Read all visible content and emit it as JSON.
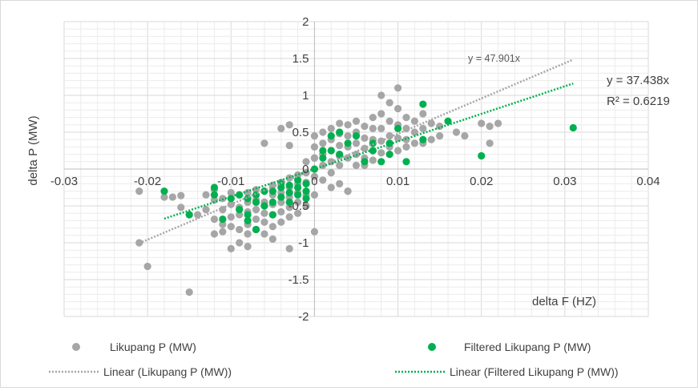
{
  "chart_data": {
    "type": "scatter",
    "title": "",
    "xlabel": "delta F (HZ)",
    "ylabel": "delta P (MW)",
    "xlim": [
      -0.03,
      0.04
    ],
    "ylim": [
      -2,
      2
    ],
    "x_ticks": [
      "-0.03",
      "-0.02",
      "-0.01",
      "0",
      "0.01",
      "0.02",
      "0.03",
      "0.04"
    ],
    "y_ticks": [
      "-2",
      "-1.5",
      "-1",
      "-0.5",
      "0",
      "0.5",
      "1",
      "1.5",
      "2"
    ],
    "grid": true,
    "legend_placement": "bottom",
    "series": [
      {
        "name": "Likupang P (MW)",
        "color": "#a6a6a6",
        "x": [
          -0.021,
          -0.021,
          -0.02,
          -0.018,
          -0.017,
          -0.016,
          -0.016,
          -0.015,
          -0.015,
          -0.014,
          -0.013,
          -0.013,
          -0.012,
          -0.012,
          -0.012,
          -0.012,
          -0.011,
          -0.011,
          -0.011,
          -0.011,
          -0.01,
          -0.01,
          -0.01,
          -0.01,
          -0.01,
          -0.009,
          -0.009,
          -0.009,
          -0.009,
          -0.009,
          -0.008,
          -0.008,
          -0.008,
          -0.008,
          -0.008,
          -0.008,
          -0.007,
          -0.007,
          -0.007,
          -0.007,
          -0.007,
          -0.006,
          -0.006,
          -0.006,
          -0.006,
          -0.006,
          -0.005,
          -0.005,
          -0.005,
          -0.005,
          -0.005,
          -0.005,
          -0.004,
          -0.004,
          -0.004,
          -0.004,
          -0.004,
          -0.003,
          -0.003,
          -0.003,
          -0.003,
          -0.003,
          -0.003,
          -0.002,
          -0.002,
          -0.002,
          -0.002,
          -0.002,
          -0.001,
          -0.001,
          -0.001,
          -0.001,
          -0.001,
          0.0,
          0.0,
          0.0,
          0.0,
          0.0,
          0.0,
          0.001,
          0.001,
          0.001,
          0.001,
          0.001,
          0.002,
          0.002,
          0.002,
          0.002,
          0.002,
          0.002,
          0.003,
          0.003,
          0.003,
          0.003,
          0.003,
          0.003,
          0.004,
          0.004,
          0.004,
          0.004,
          0.004,
          0.005,
          0.005,
          0.005,
          0.005,
          0.005,
          0.006,
          0.006,
          0.006,
          0.006,
          0.006,
          0.007,
          0.007,
          0.007,
          0.007,
          0.007,
          0.008,
          0.008,
          0.008,
          0.008,
          0.008,
          0.009,
          0.009,
          0.009,
          0.009,
          0.01,
          0.01,
          0.01,
          0.01,
          0.01,
          0.011,
          0.011,
          0.011,
          0.011,
          0.012,
          0.012,
          0.012,
          0.013,
          0.013,
          0.013,
          0.014,
          0.014,
          0.015,
          0.015,
          0.017,
          0.018,
          0.02,
          0.021,
          0.021,
          0.022,
          -0.004,
          -0.003,
          -0.006,
          0.0,
          0.004,
          -0.006,
          -0.003,
          0.005,
          0.003
        ],
        "y": [
          -0.3,
          -1.0,
          -1.32,
          -0.38,
          -0.38,
          -0.36,
          -0.52,
          -0.62,
          -1.67,
          -0.62,
          -0.35,
          -0.55,
          -0.28,
          -0.42,
          -0.68,
          -0.88,
          -0.4,
          -0.55,
          -0.75,
          -0.85,
          -0.32,
          -0.48,
          -0.65,
          -0.78,
          -1.08,
          -0.35,
          -0.52,
          -0.62,
          -0.82,
          -1.0,
          -0.32,
          -0.45,
          -0.58,
          -0.75,
          -0.88,
          -1.05,
          -0.28,
          -0.42,
          -0.55,
          -0.68,
          -0.82,
          -0.3,
          -0.45,
          -0.6,
          -0.72,
          -0.88,
          -0.22,
          -0.35,
          -0.48,
          -0.62,
          -0.78,
          -0.95,
          -0.18,
          -0.32,
          -0.45,
          -0.58,
          -0.72,
          -0.12,
          -0.25,
          -0.38,
          -0.52,
          -0.65,
          -1.08,
          -0.08,
          -0.2,
          -0.32,
          -0.45,
          -0.6,
          0.1,
          -0.05,
          -0.18,
          -0.35,
          -0.5,
          0.45,
          0.3,
          0.15,
          -0.1,
          -0.35,
          -0.85,
          0.5,
          0.35,
          0.2,
          0.05,
          -0.15,
          0.55,
          0.4,
          0.25,
          0.1,
          -0.05,
          -0.25,
          0.62,
          0.48,
          0.32,
          0.18,
          0.05,
          -0.2,
          0.6,
          0.45,
          0.3,
          0.15,
          -0.3,
          0.65,
          0.5,
          0.35,
          0.2,
          0.05,
          0.58,
          0.42,
          0.28,
          0.15,
          0.05,
          0.7,
          0.55,
          0.4,
          0.25,
          0.12,
          1.0,
          0.75,
          0.55,
          0.38,
          0.22,
          0.9,
          0.65,
          0.45,
          0.3,
          1.1,
          0.82,
          0.6,
          0.42,
          0.25,
          0.7,
          0.55,
          0.4,
          0.3,
          0.65,
          0.5,
          0.35,
          0.75,
          0.55,
          0.35,
          0.62,
          0.4,
          0.58,
          0.45,
          0.5,
          0.45,
          0.62,
          0.58,
          0.35,
          0.62,
          0.55,
          0.6,
          0.35,
          0.15,
          -0.3,
          -0.45,
          0.32,
          0.5,
          0.18
        ],
        "trendline": {
          "label": "Linear (Likupang P (MW))",
          "equation": "y = 47.901x",
          "slope": 47.901,
          "x_range": [
            -0.021,
            0.031
          ],
          "color": "#a6a6a6"
        }
      },
      {
        "name": "Filtered Likupang P (MW)",
        "color": "#00b050",
        "x": [
          -0.018,
          -0.015,
          -0.012,
          -0.012,
          -0.011,
          -0.01,
          -0.009,
          -0.009,
          -0.008,
          -0.008,
          -0.008,
          -0.007,
          -0.007,
          -0.007,
          -0.006,
          -0.006,
          -0.005,
          -0.005,
          -0.005,
          -0.004,
          -0.004,
          -0.004,
          -0.003,
          -0.003,
          -0.003,
          -0.002,
          -0.002,
          -0.002,
          -0.001,
          -0.001,
          -0.001,
          0.0,
          0.001,
          0.001,
          0.002,
          0.002,
          0.003,
          0.003,
          0.004,
          0.005,
          0.006,
          0.007,
          0.007,
          0.008,
          0.009,
          0.009,
          0.01,
          0.011,
          0.013,
          0.013,
          0.016,
          0.02,
          0.031
        ],
        "y": [
          -0.3,
          -0.62,
          -0.25,
          -0.35,
          -0.68,
          -0.4,
          -0.55,
          -0.35,
          -0.62,
          -0.4,
          -0.7,
          -0.45,
          -0.35,
          -0.82,
          -0.5,
          -0.3,
          -0.45,
          -0.3,
          -0.62,
          -0.38,
          -0.25,
          -0.2,
          -0.45,
          -0.32,
          -0.22,
          -0.35,
          -0.25,
          -0.15,
          -0.4,
          -0.3,
          -0.2,
          0.0,
          0.25,
          0.15,
          0.45,
          0.25,
          0.5,
          0.2,
          0.35,
          0.45,
          0.1,
          0.35,
          0.25,
          0.1,
          0.35,
          0.2,
          0.55,
          0.1,
          0.88,
          0.4,
          0.65,
          0.18,
          0.56
        ],
        "trendline": {
          "label": "Linear (Filtered Likupang P (MW))",
          "equation": "y = 37.438x",
          "r2": "R² = 0.6219",
          "slope": 37.438,
          "x_range": [
            -0.018,
            0.031
          ],
          "color": "#00b050"
        }
      }
    ]
  },
  "legend": {
    "series_1": "Likupang P (MW)",
    "series_2": "Filtered Likupang P (MW)",
    "trend_1": "Linear (Likupang P (MW))",
    "trend_2": "Linear (Filtered Likupang P (MW))"
  }
}
